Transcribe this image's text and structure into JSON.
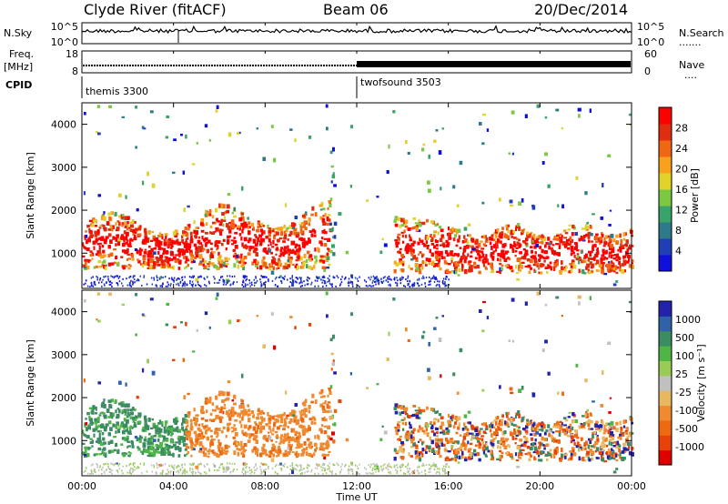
{
  "header": {
    "title": "Clyde River (fitACF)",
    "beam": "Beam 06",
    "date": "20/Dec/2014"
  },
  "top_panels": {
    "nsky_label": "N.Sky",
    "nsky_ticks": [
      "10^5",
      "10^0"
    ],
    "nsearch_label": "N.Search",
    "nsearch_ticks": [
      "10^5",
      "10^0"
    ],
    "freq_label": "Freq.",
    "freq_unit": "[MHz]",
    "freq_ticks": [
      "8",
      "18"
    ],
    "nave_label": "Nave",
    "nave_ticks": [
      "60",
      "0"
    ],
    "cpid_label": "CPID",
    "cpid_segments": [
      {
        "name": "themis 3300",
        "start_ut": 0.0
      },
      {
        "name": "twofsound 3503",
        "start_ut": 12.0
      }
    ]
  },
  "chart_data": [
    {
      "type": "heatmap",
      "name": "power",
      "ylabel": "Slant Range [km]",
      "yticks": [
        "1000",
        "2000",
        "3000",
        "4000"
      ],
      "ylim": [
        180,
        4500
      ],
      "xlim": [
        0,
        24
      ],
      "colorbar": {
        "label": "Power [dB]",
        "ticks": [
          "4",
          "8",
          "12",
          "16",
          "20",
          "24",
          "28"
        ],
        "colors": [
          "#1010dd",
          "#1f3fb4",
          "#2e7a88",
          "#3aa36a",
          "#7cc845",
          "#e0d22a",
          "#f7a21c",
          "#ef6712",
          "#e02d10",
          "#ff0000"
        ]
      }
    },
    {
      "type": "heatmap",
      "name": "velocity",
      "ylabel": "Slant Range [km]",
      "yticks": [
        "1000",
        "2000",
        "3000",
        "4000"
      ],
      "ylim": [
        180,
        4500
      ],
      "xlim": [
        0,
        24
      ],
      "colorbar": {
        "label": "Velocity [m s⁻¹]",
        "ticks": [
          "1000",
          "500",
          "100",
          "25",
          "-25",
          "-100",
          "-500",
          "-1000"
        ],
        "colors": [
          "#2222aa",
          "#2f62a8",
          "#3b8b63",
          "#4fb646",
          "#99cc55",
          "#c0c0c0",
          "#e8b860",
          "#f08a30",
          "#ee6a10",
          "#e8420a",
          "#e00000"
        ]
      }
    }
  ],
  "x_axis": {
    "label": "Time UT",
    "ticks": [
      "00:00",
      "04:00",
      "08:00",
      "12:00",
      "16:00",
      "20:00",
      "00:00"
    ]
  }
}
